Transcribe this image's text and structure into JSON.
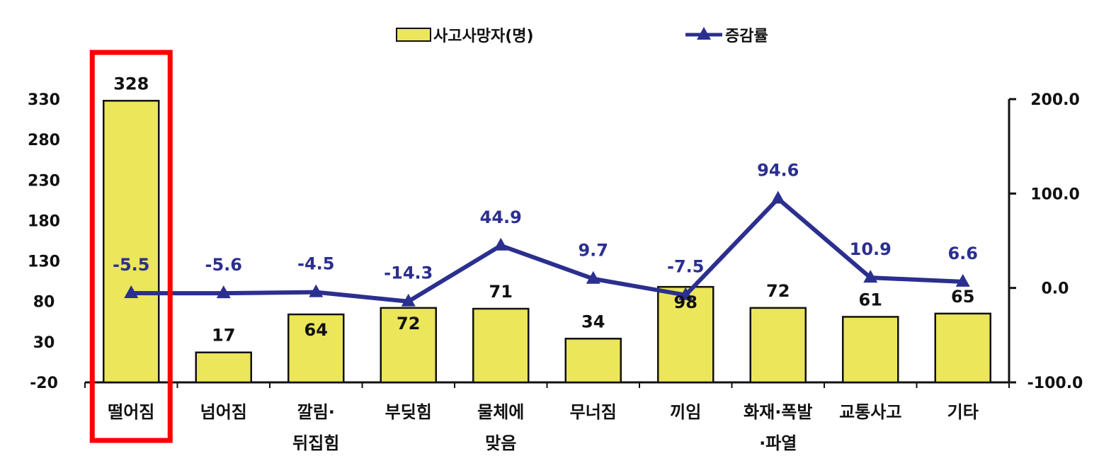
{
  "chart_data": {
    "type": "bar+line",
    "categories": [
      [
        "떨어짐"
      ],
      [
        "넘어짐"
      ],
      [
        "깔림·",
        "뒤집힘"
      ],
      [
        "부딪힘"
      ],
      [
        "물체에",
        "맞음"
      ],
      [
        "무너짐"
      ],
      [
        "끼임"
      ],
      [
        "화재·폭발",
        "·파열"
      ],
      [
        "교통사고"
      ],
      [
        "기타"
      ]
    ],
    "series": [
      {
        "name": "사고사망자(명)",
        "type": "bar",
        "axis": "left",
        "values": [
          328,
          17,
          64,
          72,
          71,
          34,
          98,
          72,
          61,
          65
        ],
        "labels": [
          "328",
          "17",
          "64",
          "72",
          "71",
          "34",
          "98",
          "72",
          "61",
          "65"
        ],
        "label_inside": [
          false,
          false,
          true,
          true,
          false,
          false,
          true,
          false,
          false,
          false
        ],
        "color": "#ebe65a"
      },
      {
        "name": "증감률",
        "type": "line",
        "axis": "right",
        "values": [
          -5.5,
          -5.6,
          -4.5,
          -14.3,
          44.9,
          9.7,
          -7.5,
          94.6,
          10.9,
          6.6
        ],
        "labels": [
          "-5.5",
          "-5.6",
          "-4.5",
          "-14.3",
          "44.9",
          "9.7",
          "-7.5",
          "94.6",
          "10.9",
          "6.6"
        ],
        "color": "#2b2f8f"
      }
    ],
    "left_axis": {
      "ticks": [
        -20,
        30,
        80,
        130,
        180,
        230,
        280,
        330
      ],
      "tick_labels": [
        "-20",
        "30",
        "80",
        "130",
        "180",
        "230",
        "280",
        "330"
      ],
      "range": [
        -20,
        330
      ]
    },
    "right_axis": {
      "ticks": [
        -100,
        0,
        100,
        200
      ],
      "tick_labels": [
        "-100.0",
        "0.0",
        "100.0",
        "200.0"
      ],
      "range": [
        -100,
        200
      ]
    },
    "legend": {
      "position": "top-center",
      "items": [
        "사고사망자(명)",
        "증감률"
      ]
    },
    "highlight": {
      "category_index": 0,
      "color": "#ff0000"
    }
  }
}
